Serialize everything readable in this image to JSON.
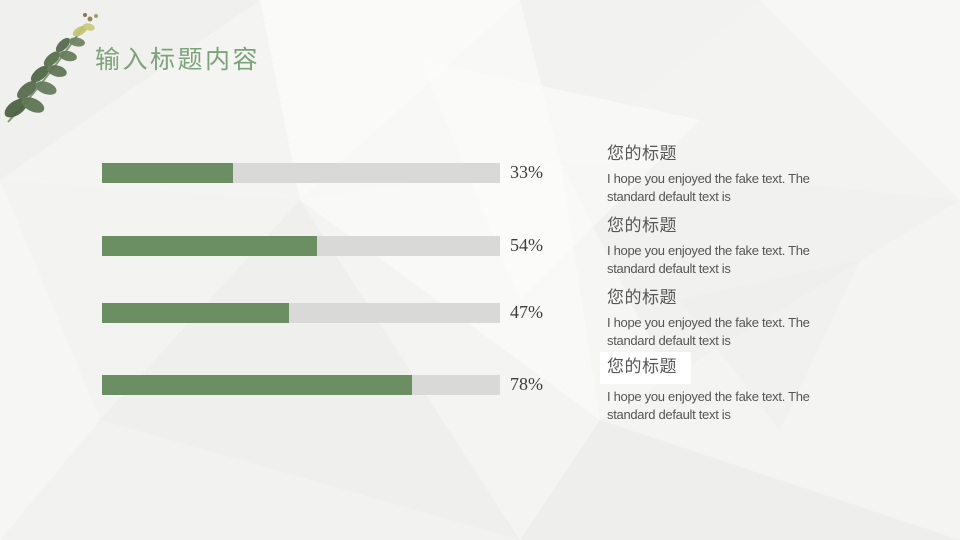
{
  "slide_title": {
    "text": "输入标题内容",
    "color": "#7da37a"
  },
  "chart_data": {
    "type": "bar",
    "orientation": "horizontal",
    "categories": [
      "您的标题",
      "您的标题",
      "您的标题",
      "您的标题"
    ],
    "values": [
      33,
      54,
      47,
      78
    ],
    "value_labels": [
      "33%",
      "54%",
      "47%",
      "78%"
    ],
    "unit": "%",
    "xlim": [
      0,
      100
    ],
    "bar_color": "#6b8f62",
    "track_color": "#d9d9d7",
    "value_label_color": "#3d3d3d",
    "grid": false,
    "legend": false
  },
  "text_blocks": [
    {
      "heading": "您的标题",
      "body": "I hope you enjoyed the fake text. The standard default text is",
      "highlighted": false
    },
    {
      "heading": "您的标题",
      "body": "I hope you enjoyed the fake text. The standard default text is",
      "highlighted": false
    },
    {
      "heading": "您的标题",
      "body": "I hope you enjoyed the fake text. The standard default text is",
      "highlighted": false
    },
    {
      "heading": "您的标题",
      "body": "I hope you enjoyed the fake text. The standard default text is",
      "highlighted": true
    }
  ],
  "decor": {
    "plant_icon": "eucalyptus-watercolor-sprig"
  },
  "colors": {
    "background": "#f6f6f5",
    "title": "#7da37a",
    "heading_text": "#575757",
    "body_text": "#555555",
    "highlight_box": "#ffffff"
  }
}
